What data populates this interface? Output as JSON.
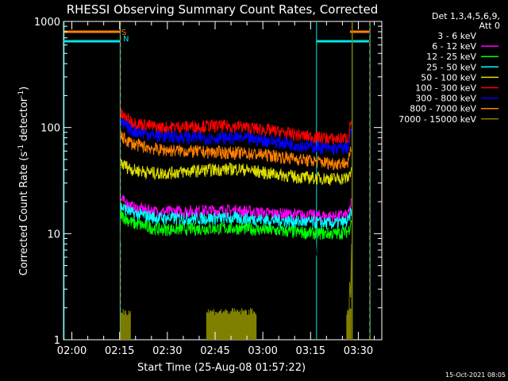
{
  "chart_data": {
    "type": "line",
    "title": "RHESSI Observing Summary Count Rates, Corrected",
    "xlabel": "Start Time (25-Aug-08 01:57:22)",
    "ylabel_main": "Corrected Count Rate (s",
    "ylabel_sup1": "-1",
    "ylabel_mid": " detector",
    "ylabel_sup2": "-1",
    "ylabel_end": ")",
    "yscale": "log",
    "ylim": [
      1,
      1000
    ],
    "xlim_minutes": [
      0,
      100
    ],
    "x_ticks": [
      "02:00",
      "02:15",
      "02:30",
      "02:45",
      "03:00",
      "03:15",
      "03:30"
    ],
    "x_tick_minutes": [
      2.63,
      17.63,
      32.63,
      47.63,
      62.63,
      77.63,
      92.63
    ],
    "y_ticks": [
      "1",
      "10",
      "100",
      "1000"
    ],
    "y_tick_values": [
      1,
      10,
      100,
      1000
    ],
    "legend_header": [
      "Det 1,3,4,5,6,9,",
      "Att 0"
    ],
    "legend_placement": "outside-right",
    "footer": "15-Oct-2021 08:05",
    "flag_labels": {
      "s": "S",
      "n": "N"
    },
    "flags": {
      "saa": {
        "color": "#ff8000",
        "value": 800,
        "intervals": [
          [
            0,
            17.8
          ],
          [
            90,
            96
          ]
        ]
      },
      "night": {
        "color": "#00e5e5",
        "value": 650,
        "intervals": [
          [
            0,
            17.8
          ],
          [
            79.5,
            96
          ]
        ]
      }
    },
    "markers": {
      "orange_dashed": [
        17.9,
        96.2
      ],
      "cyan_solid": [
        0.2,
        17.8,
        79.5,
        96.3
      ],
      "olive_solid": [
        90.7
      ]
    },
    "data_start": 18.0,
    "data_end": 90.5,
    "series": [
      {
        "name": "3 - 6 keV",
        "color": "#000000",
        "points": [
          [
            18,
            12
          ],
          [
            22,
            9.5
          ],
          [
            30,
            8.2
          ],
          [
            45,
            7.8
          ],
          [
            55,
            7.8
          ],
          [
            65,
            7.5
          ],
          [
            75,
            7
          ],
          [
            85,
            6.8
          ],
          [
            89.5,
            7
          ],
          [
            90.5,
            10
          ]
        ]
      },
      {
        "name": "6 - 12 keV",
        "color": "#ff00ff",
        "points": [
          [
            18,
            21
          ],
          [
            22,
            17.5
          ],
          [
            30,
            16
          ],
          [
            45,
            16.5
          ],
          [
            55,
            16.5
          ],
          [
            65,
            15.5
          ],
          [
            75,
            15
          ],
          [
            85,
            14.5
          ],
          [
            89.5,
            15
          ],
          [
            90.5,
            20
          ]
        ]
      },
      {
        "name": "12 - 25 keV",
        "color": "#00ff00",
        "points": [
          [
            18,
            15
          ],
          [
            22,
            12.5
          ],
          [
            30,
            11
          ],
          [
            45,
            11.2
          ],
          [
            55,
            11.3
          ],
          [
            65,
            10.8
          ],
          [
            75,
            10.3
          ],
          [
            85,
            10
          ],
          [
            89.5,
            10.5
          ],
          [
            90.5,
            14
          ]
        ]
      },
      {
        "name": "25 - 50 keV",
        "color": "#00ffff",
        "points": [
          [
            18,
            18
          ],
          [
            22,
            15.5
          ],
          [
            30,
            14
          ],
          [
            45,
            14
          ],
          [
            55,
            14
          ],
          [
            65,
            13.5
          ],
          [
            75,
            13
          ],
          [
            85,
            12.5
          ],
          [
            89.5,
            13
          ],
          [
            90.5,
            17
          ]
        ]
      },
      {
        "name": "50 - 100 keV",
        "color": "#dddd00",
        "points": [
          [
            18,
            46
          ],
          [
            22,
            40
          ],
          [
            30,
            37
          ],
          [
            45,
            40
          ],
          [
            55,
            41
          ],
          [
            65,
            37
          ],
          [
            75,
            34
          ],
          [
            85,
            33
          ],
          [
            89.5,
            33.5
          ],
          [
            90.5,
            42
          ]
        ]
      },
      {
        "name": "100 - 300 keV",
        "color": "#ff0000",
        "points": [
          [
            18,
            132
          ],
          [
            22,
            112
          ],
          [
            30,
            100
          ],
          [
            45,
            104
          ],
          [
            55,
            103
          ],
          [
            65,
            94
          ],
          [
            75,
            84
          ],
          [
            85,
            78
          ],
          [
            89.5,
            80
          ],
          [
            90.5,
            125
          ]
        ]
      },
      {
        "name": "300 - 800 keV",
        "color": "#0000ff",
        "points": [
          [
            18,
            110
          ],
          [
            22,
            93
          ],
          [
            30,
            83
          ],
          [
            45,
            80
          ],
          [
            55,
            80
          ],
          [
            65,
            75
          ],
          [
            75,
            68
          ],
          [
            85,
            63
          ],
          [
            89.5,
            65
          ],
          [
            90.5,
            98
          ]
        ]
      },
      {
        "name": "800 - 7000 keV",
        "color": "#ff8000",
        "points": [
          [
            18,
            82
          ],
          [
            22,
            70
          ],
          [
            30,
            62
          ],
          [
            45,
            59
          ],
          [
            55,
            58
          ],
          [
            65,
            55
          ],
          [
            75,
            50
          ],
          [
            85,
            46
          ],
          [
            89.5,
            47
          ],
          [
            90.5,
            66
          ]
        ]
      },
      {
        "name": "7000 - 15000 keV",
        "color": "#808000",
        "points": []
      }
    ]
  }
}
